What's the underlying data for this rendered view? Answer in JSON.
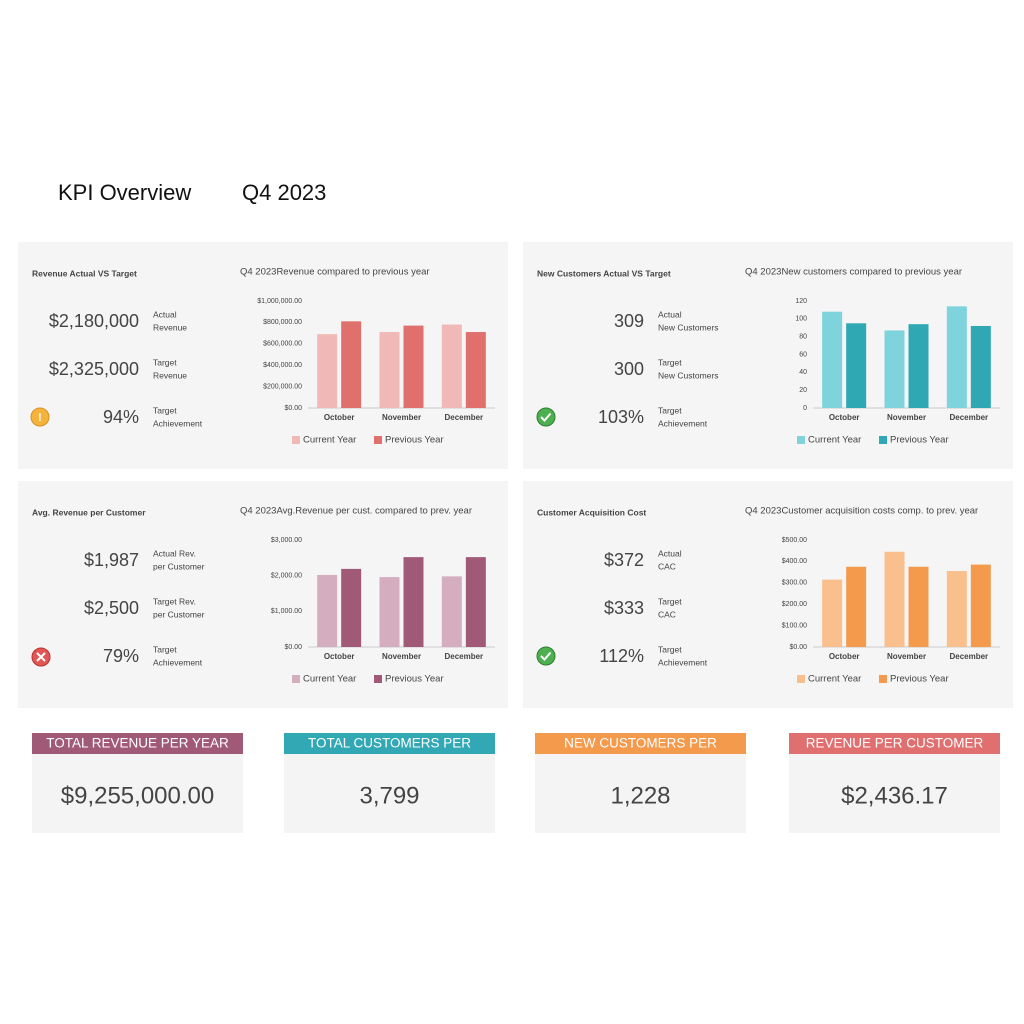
{
  "header": {
    "title": "KPI Overview",
    "period": "Q4 2023"
  },
  "panels": [
    {
      "title": "Revenue Actual VS Target",
      "kpis": [
        {
          "value": "$2,180,000",
          "label": [
            "Actual",
            "Revenue"
          ]
        },
        {
          "value": "$2,325,000",
          "label": [
            "Target",
            "Revenue"
          ]
        },
        {
          "value": "94%",
          "label": [
            "Target",
            "Achievement"
          ]
        }
      ]
    },
    {
      "title": "New Customers Actual VS Target",
      "kpis": [
        {
          "value": "309",
          "label": [
            "Actual",
            "New Customers"
          ]
        },
        {
          "value": "300",
          "label": [
            "Target",
            "New Customers"
          ]
        },
        {
          "value": "103%",
          "label": [
            "Target",
            "Achievement"
          ]
        }
      ]
    },
    {
      "title": "Avg. Revenue per Customer",
      "kpis": [
        {
          "value": "$1,987",
          "label": [
            "Actual Rev.",
            "per Customer"
          ]
        },
        {
          "value": "$2,500",
          "label": [
            "Target Rev.",
            "per Customer"
          ]
        },
        {
          "value": "79%",
          "label": [
            "Target",
            "Achievement"
          ]
        }
      ]
    },
    {
      "title": "Customer Acquisition Cost",
      "kpis": [
        {
          "value": "$372",
          "label": [
            "Actual",
            "CAC"
          ]
        },
        {
          "value": "$333",
          "label": [
            "Target",
            "CAC"
          ]
        },
        {
          "value": "112%",
          "label": [
            "Target",
            "Achievement"
          ]
        }
      ]
    }
  ],
  "chart_data": [
    {
      "type": "bar",
      "title": "Q4 2023Revenue compared to previous year",
      "categories": [
        "October",
        "November",
        "December"
      ],
      "series": [
        {
          "name": "Current Year",
          "color": "#f0b8b6",
          "values": [
            690000,
            710000,
            780000
          ]
        },
        {
          "name": "Previous Year",
          "color": "#e0706c",
          "values": [
            810000,
            770000,
            710000
          ]
        }
      ],
      "ylim": [
        0,
        1000000
      ],
      "yticks": [
        {
          "value": 0,
          "label": "$0.00"
        },
        {
          "value": 200000,
          "label": "$200,000.00"
        },
        {
          "value": 400000,
          "label": "$400,000.00"
        },
        {
          "value": 600000,
          "label": "$600,000.00"
        },
        {
          "value": 800000,
          "label": "$800,000.00"
        },
        {
          "value": 1000000,
          "label": "$1,000,000.00"
        }
      ]
    },
    {
      "type": "bar",
      "title": "Q4 2023New customers compared to previous year",
      "categories": [
        "October",
        "November",
        "December"
      ],
      "series": [
        {
          "name": "Current Year",
          "color": "#7fd3dc",
          "values": [
            108,
            87,
            114
          ]
        },
        {
          "name": "Previous Year",
          "color": "#2fa8b3",
          "values": [
            95,
            94,
            92
          ]
        }
      ],
      "ylim": [
        0,
        120
      ],
      "yticks": [
        0,
        20,
        40,
        60,
        80,
        100,
        120
      ]
    },
    {
      "type": "bar",
      "title": "Q4 2023Avg.Revenue per cust. compared to prev. year",
      "categories": [
        "October",
        "November",
        "December"
      ],
      "series": [
        {
          "name": "Current Year",
          "color": "#d4aebf",
          "values": [
            2020,
            1960,
            1980
          ]
        },
        {
          "name": "Previous Year",
          "color": "#a05a78",
          "values": [
            2190,
            2520,
            2520
          ]
        }
      ],
      "ylim": [
        0,
        3000
      ],
      "yticks": [
        {
          "value": 0,
          "label": "$0.00"
        },
        {
          "value": 1000,
          "label": "$1,000.00"
        },
        {
          "value": 2000,
          "label": "$2,000.00"
        },
        {
          "value": 3000,
          "label": "$3,000.00"
        }
      ]
    },
    {
      "type": "bar",
      "title": "Q4 2023Customer acquisition costs comp. to prev. year",
      "categories": [
        "October",
        "November",
        "December"
      ],
      "series": [
        {
          "name": "Current Year",
          "color": "#f9c08e",
          "values": [
            315,
            445,
            355
          ]
        },
        {
          "name": "Previous Year",
          "color": "#f39a4c",
          "values": [
            375,
            375,
            385
          ]
        }
      ],
      "ylim": [
        0,
        500
      ],
      "yticks": [
        {
          "value": 0,
          "label": "$0.00"
        },
        {
          "value": 100,
          "label": "$100.00"
        },
        {
          "value": 200,
          "label": "$200.00"
        },
        {
          "value": 300,
          "label": "$300.00"
        },
        {
          "value": 400,
          "label": "$400.00"
        },
        {
          "value": 500,
          "label": "$500.00"
        }
      ]
    }
  ],
  "tiles": [
    {
      "title": "TOTAL REVENUE PER YEAR",
      "value": "$9,255,000.00",
      "color": "#a05a78"
    },
    {
      "title": "TOTAL CUSTOMERS PER",
      "value": "3,799",
      "color": "#33a8b5"
    },
    {
      "title": "NEW CUSTOMERS PER",
      "value": "1,228",
      "color": "#f39a4c"
    },
    {
      "title": "REVENUE PER CUSTOMER",
      "value": "$2,436.17",
      "color": "#e07070"
    }
  ]
}
